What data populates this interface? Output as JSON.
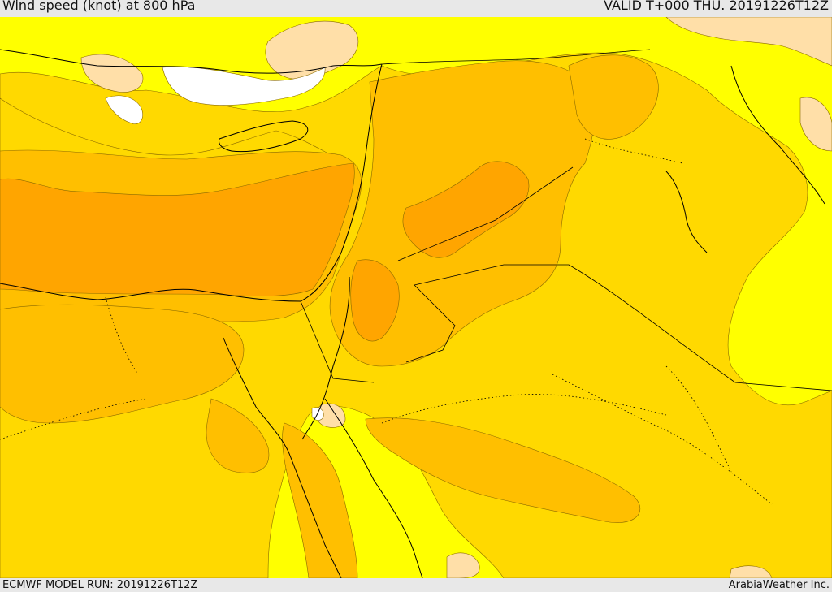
{
  "header": {
    "title": "Wind speed (knot) at 800 hPa",
    "valid": "VALID T+000 THU. 20191226T12Z"
  },
  "footer": {
    "model_run": "ECMWF MODEL RUN: 20191226T12Z",
    "credit": "ArabiaWeather Inc."
  },
  "colors": {
    "very_calm": "#ffffff",
    "calm": "#ffdfa8",
    "light": "#ffff00",
    "moderate": "#ffd900",
    "fresh": "#ffbf00",
    "strong": "#ffa500",
    "coastline": "#000000",
    "border": "#000000"
  }
}
